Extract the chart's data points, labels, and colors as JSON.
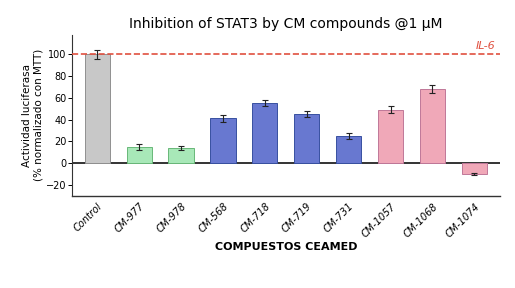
{
  "title": "Inhibition of STAT3 by CM compounds @1 μM",
  "xlabel": "COMPUESTOS CEAMED",
  "ylabel": "Actividad luciferasa\n(% normalizado con MTT)",
  "categories": [
    "Control",
    "CM-977",
    "CM-978",
    "CM-568",
    "CM-718",
    "CM-719",
    "CM-731",
    "CM-1057",
    "CM-1068",
    "CM-1074"
  ],
  "values": [
    100,
    15,
    14,
    41,
    55,
    45,
    25,
    49,
    68,
    -10
  ],
  "errors": [
    4,
    3,
    2,
    3,
    3,
    3,
    3,
    3,
    4,
    1
  ],
  "bar_colors": [
    "#c8c8c8",
    "#a8e8b8",
    "#a8e8b8",
    "#6878d0",
    "#6878d0",
    "#6878d0",
    "#6878d0",
    "#f0a8b8",
    "#f0a8b8",
    "#f0a8b8"
  ],
  "bar_edge_colors": [
    "#909090",
    "#68b878",
    "#68b878",
    "#3850a0",
    "#3850a0",
    "#3850a0",
    "#3850a0",
    "#c07898",
    "#c07898",
    "#c07898"
  ],
  "dashed_line_y": 100,
  "dashed_line_color": "#e05040",
  "il6_label": "IL-6",
  "il6_color": "#e05040",
  "ylim": [
    -30,
    118
  ],
  "yticks": [
    -20,
    0,
    20,
    40,
    60,
    80,
    100
  ],
  "background_color": "#ffffff",
  "title_fontsize": 10,
  "xlabel_fontsize": 8,
  "ylabel_fontsize": 7.5,
  "tick_fontsize": 7
}
